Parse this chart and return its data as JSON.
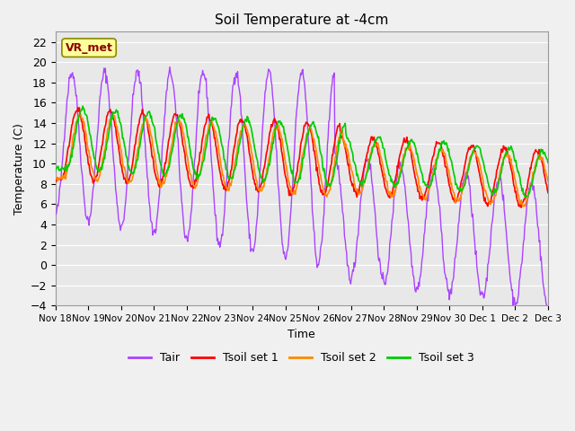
{
  "title": "Soil Temperature at -4cm",
  "xlabel": "Time",
  "ylabel": "Temperature (C)",
  "ylim": [
    -4,
    23
  ],
  "yticks": [
    -4,
    -2,
    0,
    2,
    4,
    6,
    8,
    10,
    12,
    14,
    16,
    18,
    20,
    22
  ],
  "annotation_text": "VR_met",
  "annotation_color": "#8B0000",
  "annotation_bg": "#FFFF99",
  "colors": {
    "Tair": "#AA44FF",
    "Tsoil1": "#FF0000",
    "Tsoil2": "#FF8800",
    "Tsoil3": "#00CC00"
  },
  "legend_labels": [
    "Tair",
    "Tsoil set 1",
    "Tsoil set 2",
    "Tsoil set 3"
  ],
  "xtick_labels": [
    "Nov 18",
    "Nov 19",
    "Nov 20",
    "Nov 21",
    "Nov 22",
    "Nov 23",
    "Nov 24",
    "Nov 25",
    "Nov 26",
    "Nov 27",
    "Nov 28",
    "Nov 29",
    "Nov 30",
    "Dec 1",
    "Dec 2",
    "Dec 3"
  ],
  "n_days": 15,
  "points_per_day": 48
}
